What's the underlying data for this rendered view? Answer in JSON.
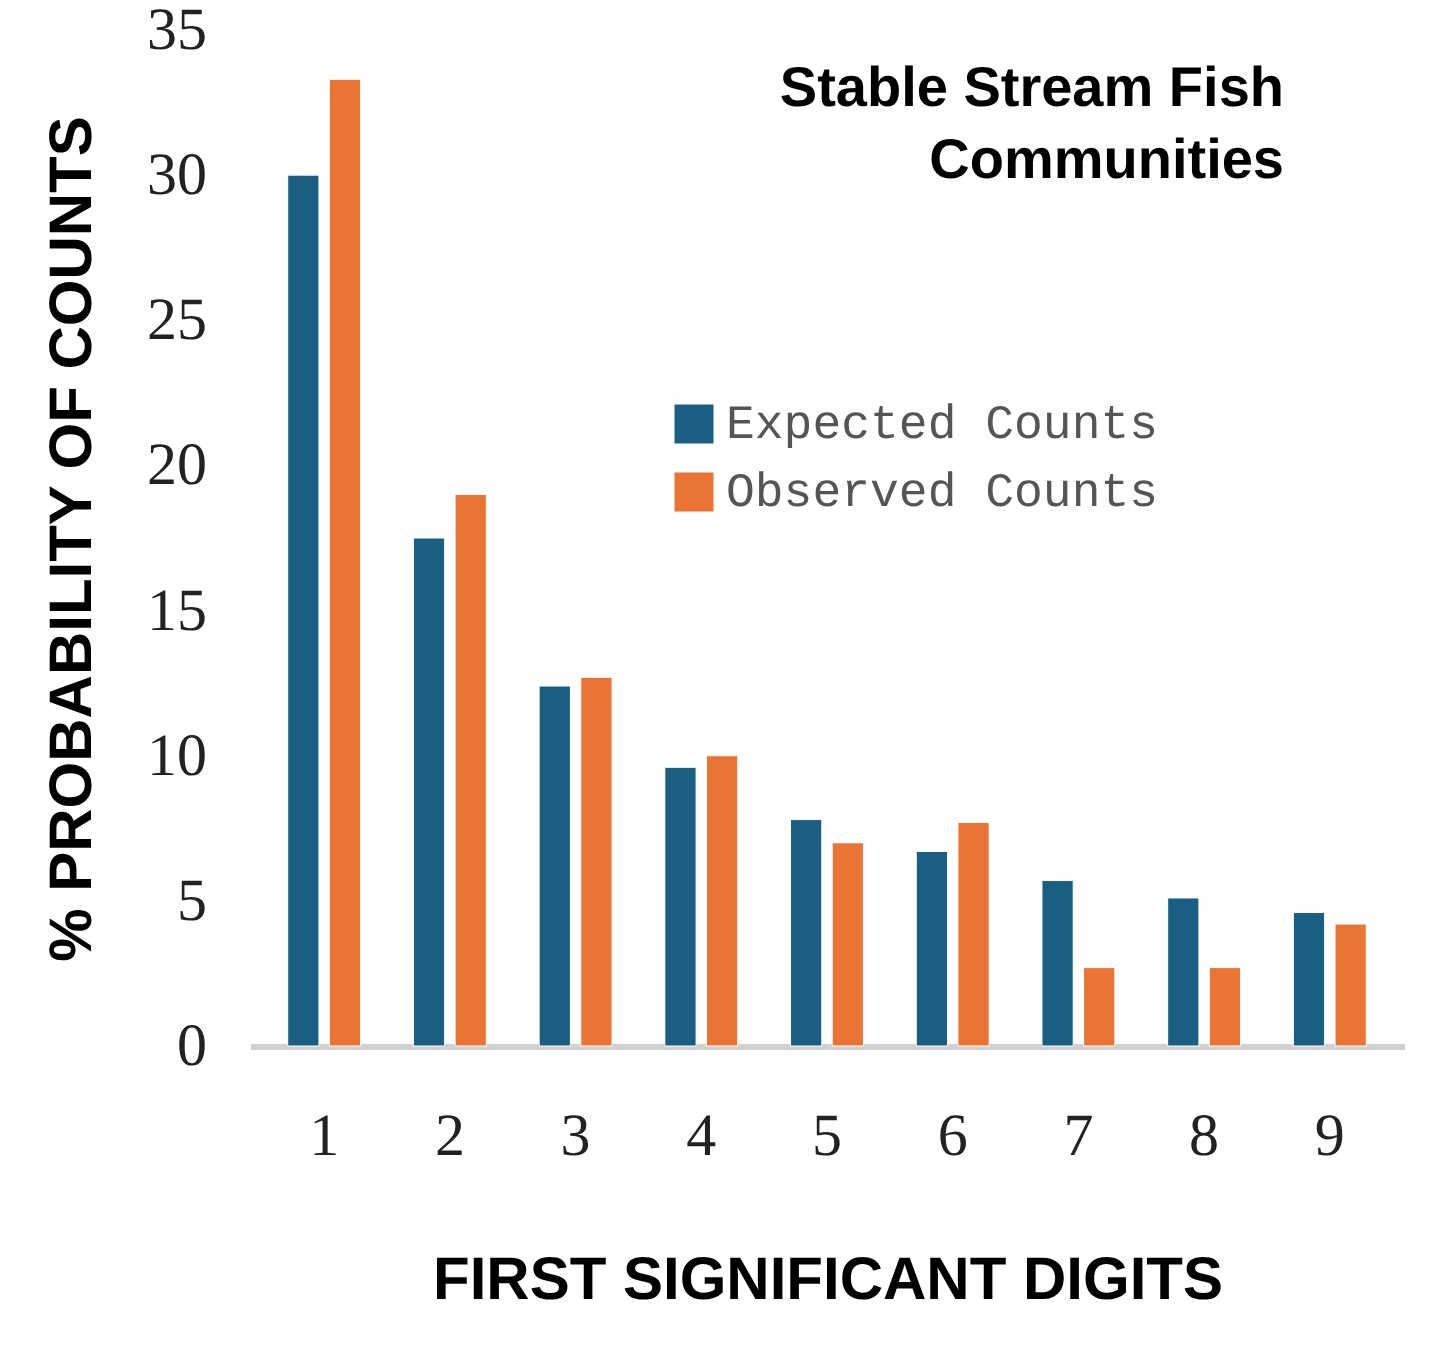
{
  "chart_data": {
    "type": "bar",
    "title": "Stable Stream Fish\nCommunities",
    "xlabel": "FIRST SIGNIFICANT DIGITS",
    "ylabel": "% PROBABILITY OF COUNTS",
    "categories": [
      "1",
      "2",
      "3",
      "4",
      "5",
      "6",
      "7",
      "8",
      "9"
    ],
    "series": [
      {
        "name": "Expected Counts",
        "color": "#1a5f82",
        "values": [
          30.0,
          17.5,
          12.4,
          9.6,
          7.8,
          6.7,
          5.7,
          5.1,
          4.6
        ]
      },
      {
        "name": "Observed Counts",
        "color": "#ea7434",
        "values": [
          33.3,
          19.0,
          12.7,
          10.0,
          7.0,
          7.7,
          2.7,
          2.7,
          4.2
        ]
      }
    ],
    "ylim": [
      0,
      35
    ],
    "yticks": [
      0,
      5,
      10,
      15,
      20,
      25,
      30,
      35
    ],
    "grid": false,
    "legend": "top right"
  }
}
